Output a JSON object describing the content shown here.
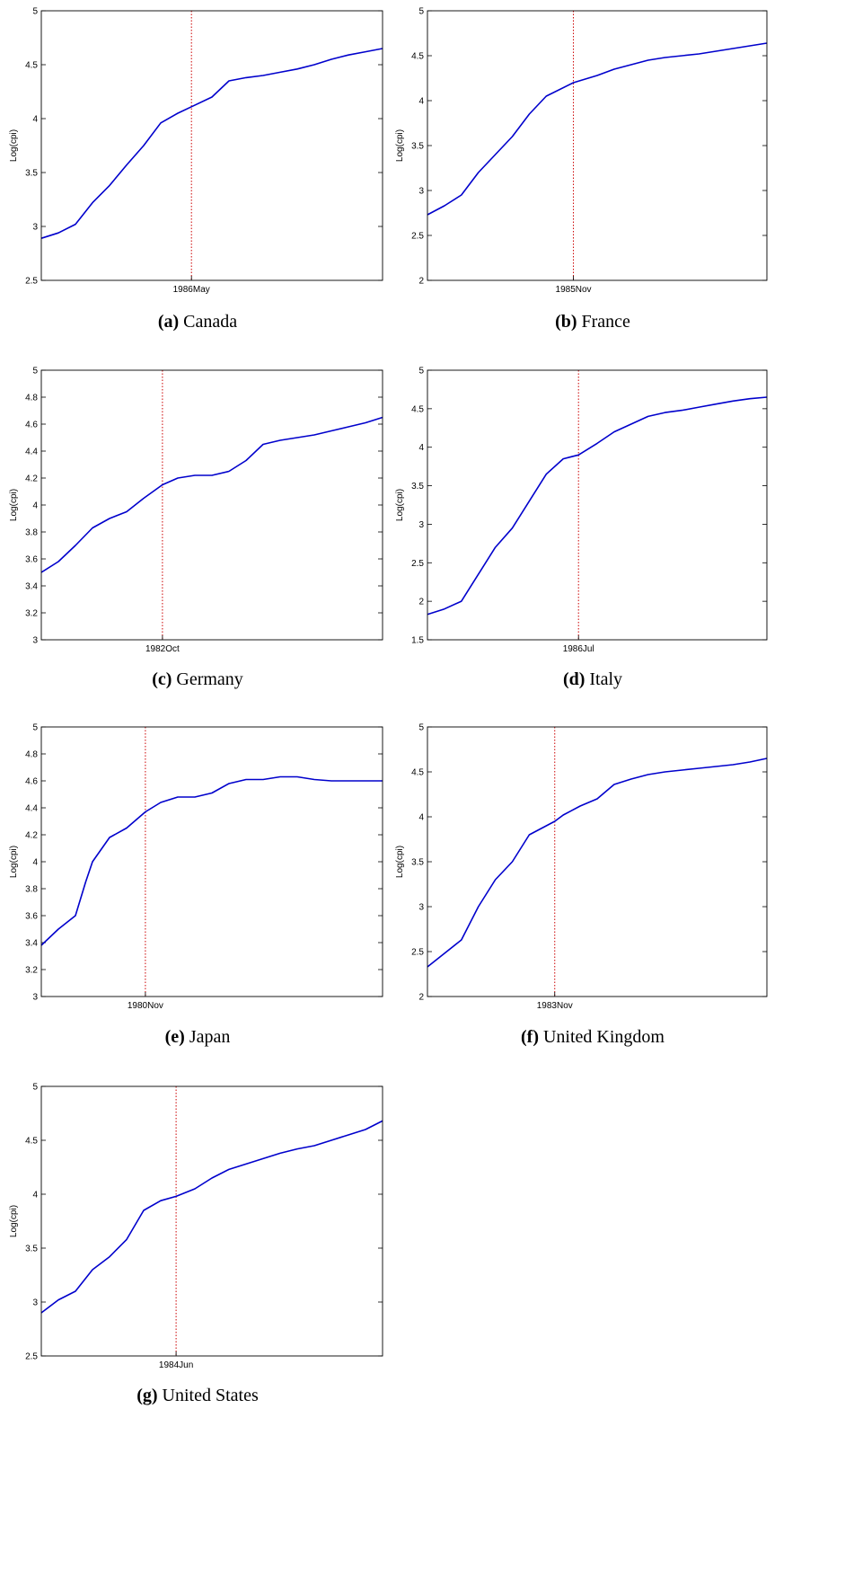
{
  "charts": [
    {
      "type": "line",
      "caption_label": "(a)",
      "caption_name": "Canada",
      "ylabel": "Log(cpi)",
      "ylim": [
        2.5,
        5
      ],
      "yticks": [
        "2.5",
        "3",
        "3.5",
        "4",
        "4.5",
        "5"
      ],
      "break_label": "1986May",
      "color": "#0000cc",
      "break_color": "#cc0000",
      "chart_data": {
        "type": "line",
        "x_range": [
          0,
          1
        ],
        "break_x": 0.44,
        "series": [
          {
            "x": [
              0,
              0.05,
              0.1,
              0.15,
              0.2,
              0.25,
              0.3,
              0.35,
              0.4,
              0.44,
              0.5,
              0.55,
              0.6,
              0.65,
              0.7,
              0.75,
              0.8,
              0.85,
              0.9,
              0.95,
              1
            ],
            "values": [
              2.89,
              2.94,
              3.02,
              3.22,
              3.38,
              3.57,
              3.75,
              3.96,
              4.05,
              4.11,
              4.2,
              4.35,
              4.38,
              4.4,
              4.43,
              4.46,
              4.5,
              4.55,
              4.59,
              4.62,
              4.65
            ]
          }
        ]
      }
    },
    {
      "type": "line",
      "caption_label": "(b)",
      "caption_name": "France",
      "ylabel": "Log(cpi)",
      "ylim": [
        2,
        5
      ],
      "yticks": [
        "2",
        "2.5",
        "3",
        "3.5",
        "4",
        "4.5",
        "5"
      ],
      "break_label": "1985Nov",
      "color": "#0000cc",
      "break_color": "#cc0000",
      "chart_data": {
        "type": "line",
        "x_range": [
          0,
          1
        ],
        "break_x": 0.43,
        "series": [
          {
            "x": [
              0,
              0.05,
              0.1,
              0.15,
              0.2,
              0.25,
              0.3,
              0.35,
              0.43,
              0.5,
              0.55,
              0.6,
              0.65,
              0.7,
              0.75,
              0.8,
              0.85,
              0.9,
              0.95,
              1
            ],
            "values": [
              2.73,
              2.83,
              2.95,
              3.2,
              3.4,
              3.6,
              3.85,
              4.05,
              4.2,
              4.28,
              4.35,
              4.4,
              4.45,
              4.48,
              4.5,
              4.52,
              4.55,
              4.58,
              4.61,
              4.64
            ]
          }
        ]
      }
    },
    {
      "type": "line",
      "caption_label": "(c)",
      "caption_name": "Germany",
      "ylabel": "Log(cpi)",
      "ylim": [
        3,
        5
      ],
      "yticks": [
        "3",
        "3.2",
        "3.4",
        "3.6",
        "3.8",
        "4",
        "4.2",
        "4.4",
        "4.6",
        "4.8",
        "5"
      ],
      "break_label": "1982Oct",
      "color": "#0000cc",
      "break_color": "#cc0000",
      "chart_data": {
        "type": "line",
        "x_range": [
          0,
          1
        ],
        "break_x": 0.355,
        "series": [
          {
            "x": [
              0,
              0.05,
              0.1,
              0.15,
              0.2,
              0.25,
              0.3,
              0.355,
              0.4,
              0.45,
              0.5,
              0.55,
              0.6,
              0.65,
              0.7,
              0.75,
              0.8,
              0.85,
              0.9,
              0.95,
              1
            ],
            "values": [
              3.5,
              3.58,
              3.7,
              3.83,
              3.9,
              3.95,
              4.05,
              4.15,
              4.2,
              4.22,
              4.22,
              4.25,
              4.33,
              4.45,
              4.48,
              4.5,
              4.52,
              4.55,
              4.58,
              4.61,
              4.65
            ]
          }
        ]
      }
    },
    {
      "type": "line",
      "caption_label": "(d)",
      "caption_name": "Italy",
      "ylabel": "Log(cpi)",
      "ylim": [
        1.5,
        5
      ],
      "yticks": [
        "1.5",
        "2",
        "2.5",
        "3",
        "3.5",
        "4",
        "4.5",
        "5"
      ],
      "break_label": "1986Jul",
      "color": "#0000cc",
      "break_color": "#cc0000",
      "chart_data": {
        "type": "line",
        "x_range": [
          0,
          1
        ],
        "break_x": 0.445,
        "series": [
          {
            "x": [
              0,
              0.05,
              0.1,
              0.15,
              0.2,
              0.25,
              0.3,
              0.35,
              0.4,
              0.445,
              0.5,
              0.55,
              0.6,
              0.65,
              0.7,
              0.75,
              0.8,
              0.85,
              0.9,
              0.95,
              1
            ],
            "values": [
              1.83,
              1.9,
              2.0,
              2.35,
              2.7,
              2.95,
              3.3,
              3.65,
              3.85,
              3.9,
              4.05,
              4.2,
              4.3,
              4.4,
              4.45,
              4.48,
              4.52,
              4.56,
              4.6,
              4.63,
              4.65
            ]
          }
        ]
      }
    },
    {
      "type": "line",
      "caption_label": "(e)",
      "caption_name": "Japan",
      "ylabel": "Log(cpi)",
      "ylim": [
        3,
        5
      ],
      "yticks": [
        "3",
        "3.2",
        "3.4",
        "3.6",
        "3.8",
        "4",
        "4.2",
        "4.4",
        "4.6",
        "4.8",
        "5"
      ],
      "break_label": "1980Nov",
      "color": "#0000cc",
      "break_color": "#cc0000",
      "chart_data": {
        "type": "line",
        "x_range": [
          0,
          1
        ],
        "break_x": 0.305,
        "series": [
          {
            "x": [
              0,
              0.05,
              0.1,
              0.13,
              0.15,
              0.2,
              0.25,
              0.305,
              0.35,
              0.4,
              0.45,
              0.5,
              0.55,
              0.6,
              0.65,
              0.7,
              0.75,
              0.8,
              0.85,
              0.9,
              0.95,
              1
            ],
            "values": [
              3.38,
              3.5,
              3.6,
              3.85,
              4.0,
              4.18,
              4.25,
              4.37,
              4.44,
              4.48,
              4.48,
              4.51,
              4.58,
              4.61,
              4.61,
              4.63,
              4.63,
              4.61,
              4.6,
              4.6,
              4.6,
              4.6
            ]
          }
        ]
      }
    },
    {
      "type": "line",
      "caption_label": "(f)",
      "caption_name": "United Kingdom",
      "ylabel": "Log(cpi)",
      "ylim": [
        2,
        5
      ],
      "yticks": [
        "2",
        "2.5",
        "3",
        "3.5",
        "4",
        "4.5",
        "5"
      ],
      "break_label": "1983Nov",
      "color": "#0000cc",
      "break_color": "#cc0000",
      "chart_data": {
        "type": "line",
        "x_range": [
          0,
          1
        ],
        "break_x": 0.375,
        "series": [
          {
            "x": [
              0,
              0.05,
              0.1,
              0.15,
              0.2,
              0.25,
              0.3,
              0.375,
              0.4,
              0.45,
              0.5,
              0.55,
              0.6,
              0.65,
              0.7,
              0.75,
              0.8,
              0.85,
              0.9,
              0.95,
              1
            ],
            "values": [
              2.33,
              2.48,
              2.63,
              3.0,
              3.3,
              3.5,
              3.8,
              3.95,
              4.02,
              4.12,
              4.2,
              4.36,
              4.42,
              4.47,
              4.5,
              4.52,
              4.54,
              4.56,
              4.58,
              4.61,
              4.65
            ]
          }
        ]
      }
    },
    {
      "type": "line",
      "caption_label": "(g)",
      "caption_name": "United States",
      "ylabel": "Log(cpi)",
      "ylim": [
        2.5,
        5
      ],
      "yticks": [
        "2.5",
        "3",
        "3.5",
        "4",
        "4.5",
        "5"
      ],
      "break_label": "1984Jun",
      "color": "#0000cc",
      "break_color": "#cc0000",
      "chart_data": {
        "type": "line",
        "x_range": [
          0,
          1
        ],
        "break_x": 0.395,
        "series": [
          {
            "x": [
              0,
              0.05,
              0.1,
              0.15,
              0.2,
              0.25,
              0.3,
              0.35,
              0.395,
              0.45,
              0.5,
              0.55,
              0.6,
              0.65,
              0.7,
              0.75,
              0.8,
              0.85,
              0.9,
              0.95,
              1
            ],
            "values": [
              2.9,
              3.02,
              3.1,
              3.3,
              3.42,
              3.58,
              3.85,
              3.94,
              3.98,
              4.05,
              4.15,
              4.23,
              4.28,
              4.33,
              4.38,
              4.42,
              4.45,
              4.5,
              4.55,
              4.6,
              4.68
            ]
          }
        ]
      }
    }
  ]
}
